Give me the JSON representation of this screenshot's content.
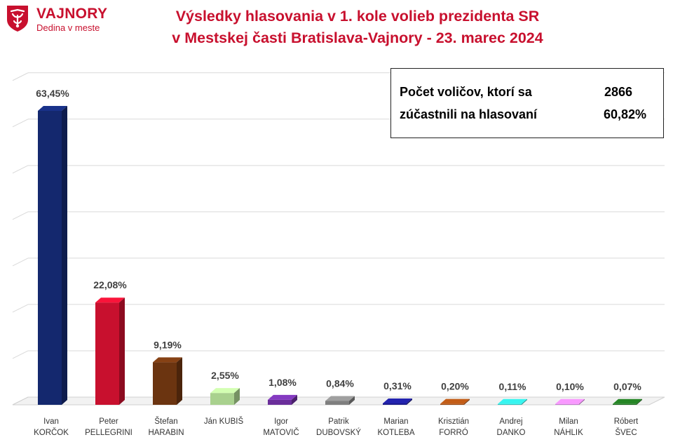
{
  "logo": {
    "name": "VAJNORY",
    "tagline": "Dedina v meste",
    "color": "#c8102e"
  },
  "header": {
    "title_line1": "Výsledky hlasovania v 1. kole volieb prezidenta SR",
    "title_line2": "v Mestskej časti Bratislava-Vajnory - 23. marec 2024"
  },
  "info": {
    "label_line1": "Počet voličov, ktorí sa",
    "label_line2": "zúčastnili na hlasovaní",
    "voters": "2866",
    "turnout": "60,82%"
  },
  "chart_data": {
    "type": "bar",
    "style": "3d-columns",
    "grid": true,
    "legend": "none",
    "ylim": [
      0,
      70
    ],
    "categories": [
      [
        "Ivan",
        "KORČOK"
      ],
      [
        "Peter",
        "PELLEGRINI"
      ],
      [
        "Štefan",
        "HARABIN"
      ],
      [
        "Ján KUBIŠ"
      ],
      [
        "Igor",
        "MATOVIČ"
      ],
      [
        "Patrik",
        "DUBOVSKÝ"
      ],
      [
        "Marian",
        "KOTLEBA"
      ],
      [
        "Krisztián",
        "FORRÓ"
      ],
      [
        "Andrej",
        "DANKO"
      ],
      [
        "Milan",
        "NÁHLIK"
      ],
      [
        "Róbert",
        "ŠVEC"
      ]
    ],
    "values": [
      63.45,
      22.08,
      9.19,
      2.55,
      1.08,
      0.84,
      0.31,
      0.2,
      0.11,
      0.1,
      0.07
    ],
    "value_labels": [
      "63,45%",
      "22,08%",
      "9,19%",
      "2,55%",
      "1,08%",
      "0,84%",
      "0,31%",
      "0,20%",
      "0,11%",
      "0,10%",
      "0,07%"
    ],
    "colors": [
      "#14286e",
      "#c8102e",
      "#6b3410",
      "#a9d18e",
      "#6a2e9a",
      "#7f7f7f",
      "#1c1c8c",
      "#9c4a12",
      "#2cc4c0",
      "#c77ad2",
      "#1e6b1e"
    ]
  }
}
